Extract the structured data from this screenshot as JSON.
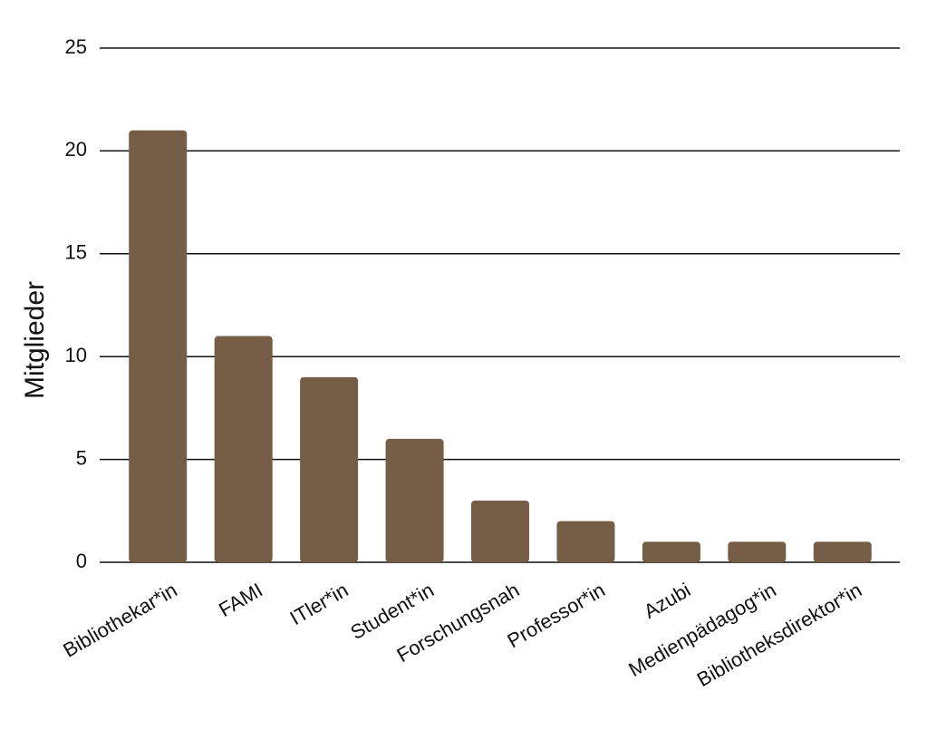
{
  "chart_data": {
    "type": "bar",
    "y_label": "Mitglieder",
    "categories": [
      "Bibliothekar*in",
      "FAMI",
      "ITler*in",
      "Student*in",
      "Forschungsnah",
      "Professor*in",
      "Azubi",
      "Medienpädagog*in",
      "Bibliotheksdirektor*in"
    ],
    "values": [
      21,
      11,
      9,
      6,
      3,
      2,
      1,
      1,
      1
    ],
    "color": "#765d46",
    "ylim": [
      0,
      25
    ],
    "yticks": [
      0,
      5,
      10,
      15,
      20,
      25
    ],
    "grid": true
  }
}
